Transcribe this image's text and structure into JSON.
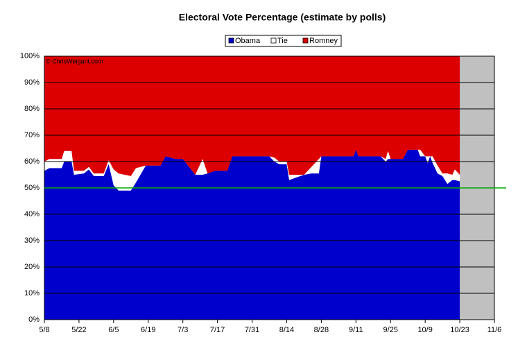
{
  "chart_data": {
    "type": "stacked_area",
    "title": "Electoral Vote Percentage (estimate by polls)",
    "annotation": "© ChrisWeigant.com",
    "x": [
      "5/8",
      "5/10",
      "5/15",
      "5/16",
      "5/19",
      "5/20",
      "5/24",
      "5/26",
      "5/28",
      "6/1",
      "6/3",
      "6/5",
      "6/7",
      "6/12",
      "6/14",
      "6/18",
      "6/24",
      "6/26",
      "6/30",
      "7/3",
      "7/8",
      "7/11",
      "7/13",
      "7/16",
      "7/21",
      "7/23",
      "8/7",
      "8/9",
      "8/11",
      "8/14",
      "8/15",
      "8/21",
      "8/24",
      "8/27",
      "8/28",
      "9/10",
      "9/11",
      "9/12",
      "9/21",
      "9/23",
      "9/24",
      "9/25",
      "9/30",
      "10/2",
      "10/6",
      "10/7",
      "10/9",
      "10/10",
      "10/11",
      "10/12",
      "10/14",
      "10/16",
      "10/18",
      "10/20",
      "10/21",
      "10/23"
    ],
    "series": [
      {
        "name": "Obama",
        "color": "#0000cc",
        "values": [
          56.5,
          57.5,
          57.5,
          60,
          60,
          55,
          55.5,
          57,
          54.5,
          54.5,
          59,
          51,
          49,
          49,
          52,
          58.5,
          58.5,
          62,
          61,
          61,
          55,
          55,
          55.5,
          56.5,
          56.5,
          62,
          62,
          60,
          59,
          59,
          53,
          55,
          55.5,
          55.5,
          62,
          62,
          64.5,
          62,
          62,
          60,
          61,
          61,
          61,
          64.5,
          64.5,
          62,
          62,
          59.5,
          62,
          59.5,
          55.5,
          54.5,
          51.5,
          53,
          53,
          52.5
        ]
      },
      {
        "name": "Tie",
        "color": "#ffffff",
        "values": [
          3.5,
          3.5,
          3.5,
          4,
          4,
          1.5,
          1,
          1,
          1,
          1,
          1.5,
          6,
          6.5,
          5.5,
          5.5,
          0,
          0,
          0,
          0,
          0,
          0,
          6,
          0,
          0,
          0,
          0,
          0,
          1.5,
          1,
          1,
          2,
          0,
          2.5,
          5.5,
          0,
          0,
          0,
          0,
          0,
          1,
          3,
          0,
          0,
          0,
          0,
          2.5,
          0,
          2.5,
          0,
          2.5,
          3,
          1,
          4,
          2,
          4,
          2.5
        ]
      },
      {
        "name": "Romney",
        "color": "#dd0000",
        "values": [
          40,
          39,
          39,
          36,
          36,
          43.5,
          43.5,
          42,
          44.5,
          44.5,
          39.5,
          43,
          44.5,
          45.5,
          42.5,
          41.5,
          41.5,
          38,
          39,
          39,
          45,
          39,
          44.5,
          43.5,
          43.5,
          38,
          38,
          38.5,
          40,
          40,
          45,
          45,
          42,
          39,
          38,
          38,
          35.5,
          38,
          38,
          39,
          36,
          39,
          39,
          35.5,
          35.5,
          35.5,
          38,
          38,
          38,
          38,
          41.5,
          44.5,
          44.5,
          45,
          43,
          45
        ]
      }
    ],
    "xlim": [
      "5/8",
      "11/6"
    ],
    "xticks": [
      "5/8",
      "5/22",
      "6/5",
      "6/19",
      "7/3",
      "7/17",
      "7/31",
      "8/14",
      "8/28",
      "9/11",
      "9/25",
      "10/9",
      "10/23",
      "11/6"
    ],
    "ylim": [
      0,
      100
    ],
    "yticks": [
      {
        "value": 0,
        "label": "0%"
      },
      {
        "value": 10,
        "label": "10%"
      },
      {
        "value": 20,
        "label": "20%"
      },
      {
        "value": 30,
        "label": "30%"
      },
      {
        "value": 40,
        "label": "40%"
      },
      {
        "value": 50,
        "label": "50%"
      },
      {
        "value": 60,
        "label": "60%"
      },
      {
        "value": 70,
        "label": "70%"
      },
      {
        "value": 80,
        "label": "80%"
      },
      {
        "value": 90,
        "label": "90%"
      },
      {
        "value": 100,
        "label": "100%"
      }
    ],
    "grid": true,
    "reference_line": {
      "value": 50,
      "color": "#00aa00"
    },
    "empty_color": "#c0c0c0",
    "legend": "top"
  }
}
